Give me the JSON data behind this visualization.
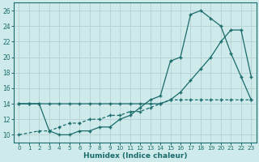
{
  "xlabel": "Humidex (Indice chaleur)",
  "bg_color": "#ceeaea",
  "grid_color": "#b8d4d4",
  "line_color": "#1a6b6b",
  "xlim": [
    -0.5,
    23.5
  ],
  "ylim": [
    9,
    27
  ],
  "xticks": [
    0,
    1,
    2,
    3,
    4,
    5,
    6,
    7,
    8,
    9,
    10,
    11,
    12,
    13,
    14,
    15,
    16,
    17,
    18,
    19,
    20,
    21,
    22,
    23
  ],
  "yticks": [
    10,
    12,
    14,
    16,
    18,
    20,
    22,
    24,
    26
  ],
  "curve1_x": [
    0,
    1,
    2,
    3,
    4,
    5,
    6,
    7,
    8,
    9,
    10,
    11,
    12,
    13,
    14,
    15,
    16,
    17,
    18,
    19,
    20,
    21,
    22,
    23
  ],
  "curve1_y": [
    14,
    14,
    14,
    10.5,
    10,
    10,
    10.5,
    10.5,
    11,
    11,
    12,
    12.5,
    13.5,
    14.5,
    15,
    19.5,
    20,
    25.5,
    26,
    25,
    24,
    20.5,
    17.5,
    14.5
  ],
  "curve2_x": [
    0,
    1,
    2,
    3,
    4,
    5,
    6,
    7,
    8,
    9,
    10,
    11,
    12,
    13,
    14,
    15,
    16,
    17,
    18,
    19,
    20,
    21,
    22,
    23
  ],
  "curve2_y": [
    14,
    14,
    14,
    14,
    14,
    14,
    14,
    14,
    14,
    14,
    14,
    14,
    14,
    14,
    14,
    14.5,
    15.5,
    17,
    18.5,
    20,
    22,
    23.5,
    23.5,
    17.5
  ],
  "curve3_x": [
    0,
    2,
    3,
    4,
    5,
    6,
    7,
    8,
    9,
    10,
    11,
    12,
    13,
    14,
    15,
    16,
    17,
    18,
    19,
    20,
    21,
    22,
    23
  ],
  "curve3_y": [
    10,
    10.5,
    10.5,
    11,
    11.5,
    11.5,
    12,
    12,
    12.5,
    12.5,
    13,
    13,
    13.5,
    14,
    14.5,
    14.5,
    14.5,
    14.5,
    14.5,
    14.5,
    14.5,
    14.5,
    14.5
  ]
}
